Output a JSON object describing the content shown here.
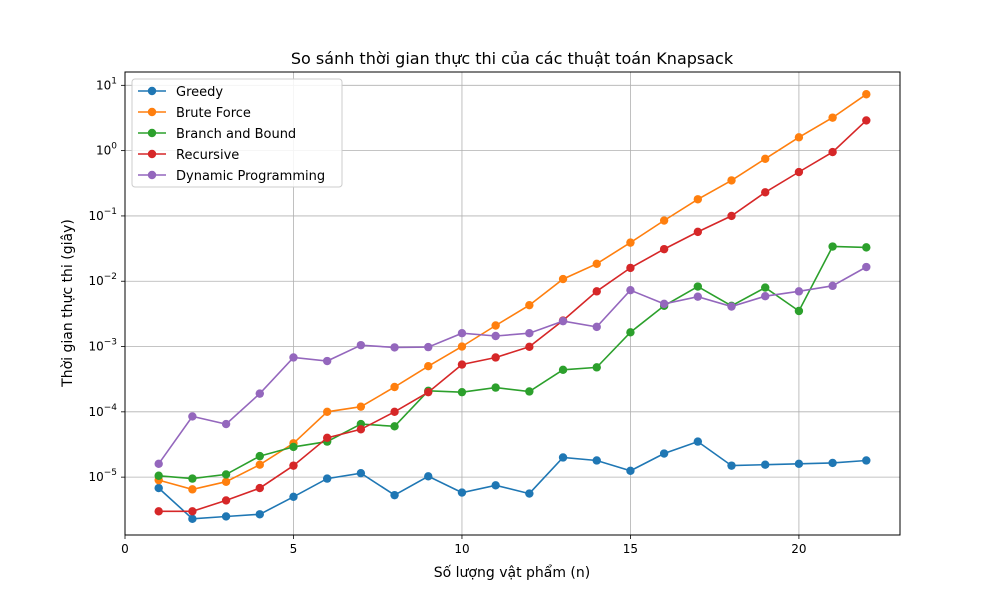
{
  "chart_data": {
    "type": "line",
    "title": "So sánh thời gian thực thi của các thuật toán Knapsack",
    "xlabel": "Số lượng vật phẩm (n)",
    "ylabel": "Thời gian thực thi (giây)",
    "xlim": [
      0,
      23
    ],
    "ylim": [
      1.3e-06,
      16
    ],
    "yscale": "log",
    "grid": true,
    "legend_position": "upper-left",
    "x_ticks": [
      0,
      5,
      10,
      15,
      20
    ],
    "y_ticks": [
      {
        "value": 1e-05,
        "base": "10",
        "exp": "−5"
      },
      {
        "value": 0.0001,
        "base": "10",
        "exp": "−4"
      },
      {
        "value": 0.001,
        "base": "10",
        "exp": "−3"
      },
      {
        "value": 0.01,
        "base": "10",
        "exp": "−2"
      },
      {
        "value": 0.1,
        "base": "10",
        "exp": "−1"
      },
      {
        "value": 1,
        "base": "10",
        "exp": "0"
      },
      {
        "value": 10,
        "base": "10",
        "exp": "1"
      }
    ],
    "x": [
      1,
      2,
      3,
      4,
      5,
      6,
      7,
      8,
      9,
      10,
      11,
      12,
      13,
      14,
      15,
      16,
      17,
      18,
      19,
      20,
      21,
      22
    ],
    "series": [
      {
        "name": "Greedy",
        "color": "#1f77b4",
        "values": [
          6.8e-06,
          2.3e-06,
          2.5e-06,
          2.7e-06,
          5e-06,
          9.5e-06,
          1.15e-05,
          5.3e-06,
          1.03e-05,
          5.8e-06,
          7.5e-06,
          5.6e-06,
          2e-05,
          1.8e-05,
          1.25e-05,
          2.3e-05,
          3.5e-05,
          1.5e-05,
          1.55e-05,
          1.6e-05,
          1.65e-05,
          1.8e-05
        ]
      },
      {
        "name": "Brute Force",
        "color": "#ff7f0e",
        "values": [
          9e-06,
          6.5e-06,
          8.5e-06,
          1.55e-05,
          3.3e-05,
          0.0001,
          0.00012,
          0.00024,
          0.0005,
          0.001,
          0.0021,
          0.0043,
          0.0108,
          0.0185,
          0.039,
          0.085,
          0.18,
          0.35,
          0.75,
          1.6,
          3.2,
          7.3
        ]
      },
      {
        "name": "Branch and Bound",
        "color": "#2ca02c",
        "values": [
          1.05e-05,
          9.5e-06,
          1.1e-05,
          2.1e-05,
          2.9e-05,
          3.5e-05,
          6.5e-05,
          6e-05,
          0.00021,
          0.0002,
          0.000235,
          0.000205,
          0.00044,
          0.00048,
          0.00165,
          0.0042,
          0.0083,
          0.0042,
          0.008,
          0.0035,
          0.034,
          0.033
        ]
      },
      {
        "name": "Recursive",
        "color": "#d62728",
        "values": [
          3e-06,
          3e-06,
          4.4e-06,
          6.8e-06,
          1.5e-05,
          4e-05,
          5.4e-05,
          0.0001,
          0.0002,
          0.00053,
          0.00068,
          0.00099,
          0.0025,
          0.007,
          0.016,
          0.031,
          0.057,
          0.1,
          0.23,
          0.47,
          0.95,
          2.9
        ]
      },
      {
        "name": "Dynamic Programming",
        "color": "#9467bd",
        "values": [
          1.6e-05,
          8.5e-05,
          6.5e-05,
          0.00019,
          0.00068,
          0.0006,
          0.00105,
          0.00097,
          0.00098,
          0.0016,
          0.00145,
          0.0016,
          0.00245,
          0.002,
          0.0073,
          0.0045,
          0.0058,
          0.0041,
          0.0059,
          0.007,
          0.0085,
          0.0165
        ]
      }
    ]
  }
}
